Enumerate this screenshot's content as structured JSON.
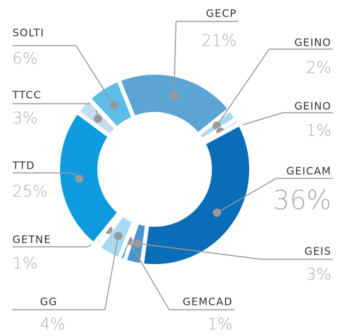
{
  "chart_data": {
    "type": "donut",
    "categories": [
      "GECP",
      "GEINO",
      "GEINO",
      "GEICAM",
      "GEIS",
      "GEMCAD",
      "GG",
      "GETNE",
      "TTD",
      "TTCC",
      "SOLTI"
    ],
    "values": [
      21,
      2,
      1,
      36,
      3,
      1,
      4,
      1,
      25,
      3,
      6
    ],
    "value_labels": [
      "21%",
      "2%",
      "1%",
      "36%",
      "3%",
      "1%",
      "4%",
      "1%",
      "25%",
      "3%",
      "6%"
    ],
    "colors": [
      "#5ba4d4",
      "#a8d8f0",
      "#c7e6f6",
      "#0a6db8",
      "#4a95cc",
      "#27a9e1",
      "#a9daf3",
      "#e3f3fb",
      "#0b9bde",
      "#c4dcee",
      "#5cbde8"
    ]
  }
}
